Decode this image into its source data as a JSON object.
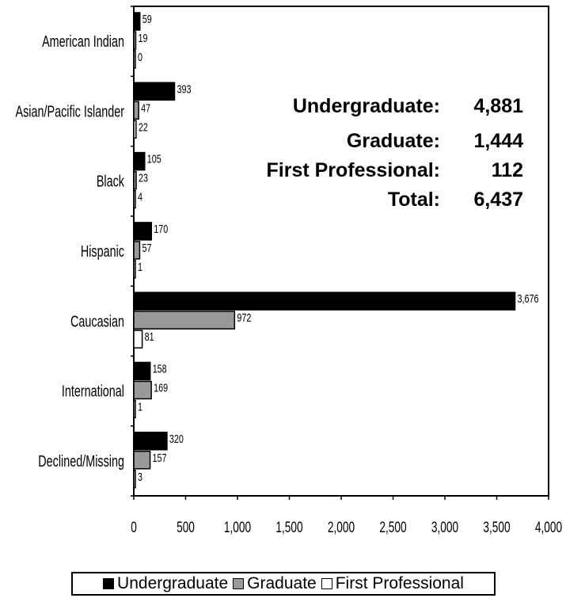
{
  "chart_data": {
    "type": "bar",
    "orientation": "horizontal",
    "categories": [
      "American Indian",
      "Asian/Pacific Islander",
      "Black",
      "Hispanic",
      "Caucasian",
      "International",
      "Declined/Missing"
    ],
    "series": [
      {
        "name": "Undergraduate",
        "color": "#000000",
        "values": [
          59,
          393,
          105,
          170,
          3676,
          158,
          320
        ],
        "labels": [
          "59",
          "393",
          "105",
          "170",
          "3,676",
          "158",
          "320"
        ]
      },
      {
        "name": "Graduate",
        "color": "#999999",
        "values": [
          19,
          47,
          23,
          57,
          972,
          169,
          157
        ],
        "labels": [
          "19",
          "47",
          "23",
          "57",
          "972",
          "169",
          "157"
        ]
      },
      {
        "name": "First Professional",
        "color": "#ffffff",
        "values": [
          0,
          22,
          4,
          1,
          81,
          1,
          3
        ],
        "labels": [
          "0",
          "22",
          "4",
          "1",
          "81",
          "1",
          "3"
        ]
      }
    ],
    "xlim": [
      0,
      4000
    ],
    "xticks": [
      0,
      500,
      1000,
      1500,
      2000,
      2500,
      3000,
      3500,
      4000
    ],
    "xtick_labels": [
      "0",
      "500",
      "1,000",
      "1,500",
      "2,000",
      "2,500",
      "3,000",
      "3,500",
      "4,000"
    ],
    "grid": false,
    "legend_position": "bottom",
    "title": "",
    "xlabel": "",
    "ylabel": "",
    "summary": [
      {
        "label": "Undergraduate:",
        "value": "4,881"
      },
      {
        "label": "Graduate:",
        "value": "1,444"
      },
      {
        "label": "First Professional:",
        "value": "112"
      },
      {
        "label": "Total:",
        "value": "6,437"
      }
    ]
  },
  "legend": [
    {
      "label": "Undergraduate",
      "color": "#000000"
    },
    {
      "label": "Graduate",
      "color": "#999999"
    },
    {
      "label": "First Professional",
      "color": "#ffffff"
    }
  ]
}
